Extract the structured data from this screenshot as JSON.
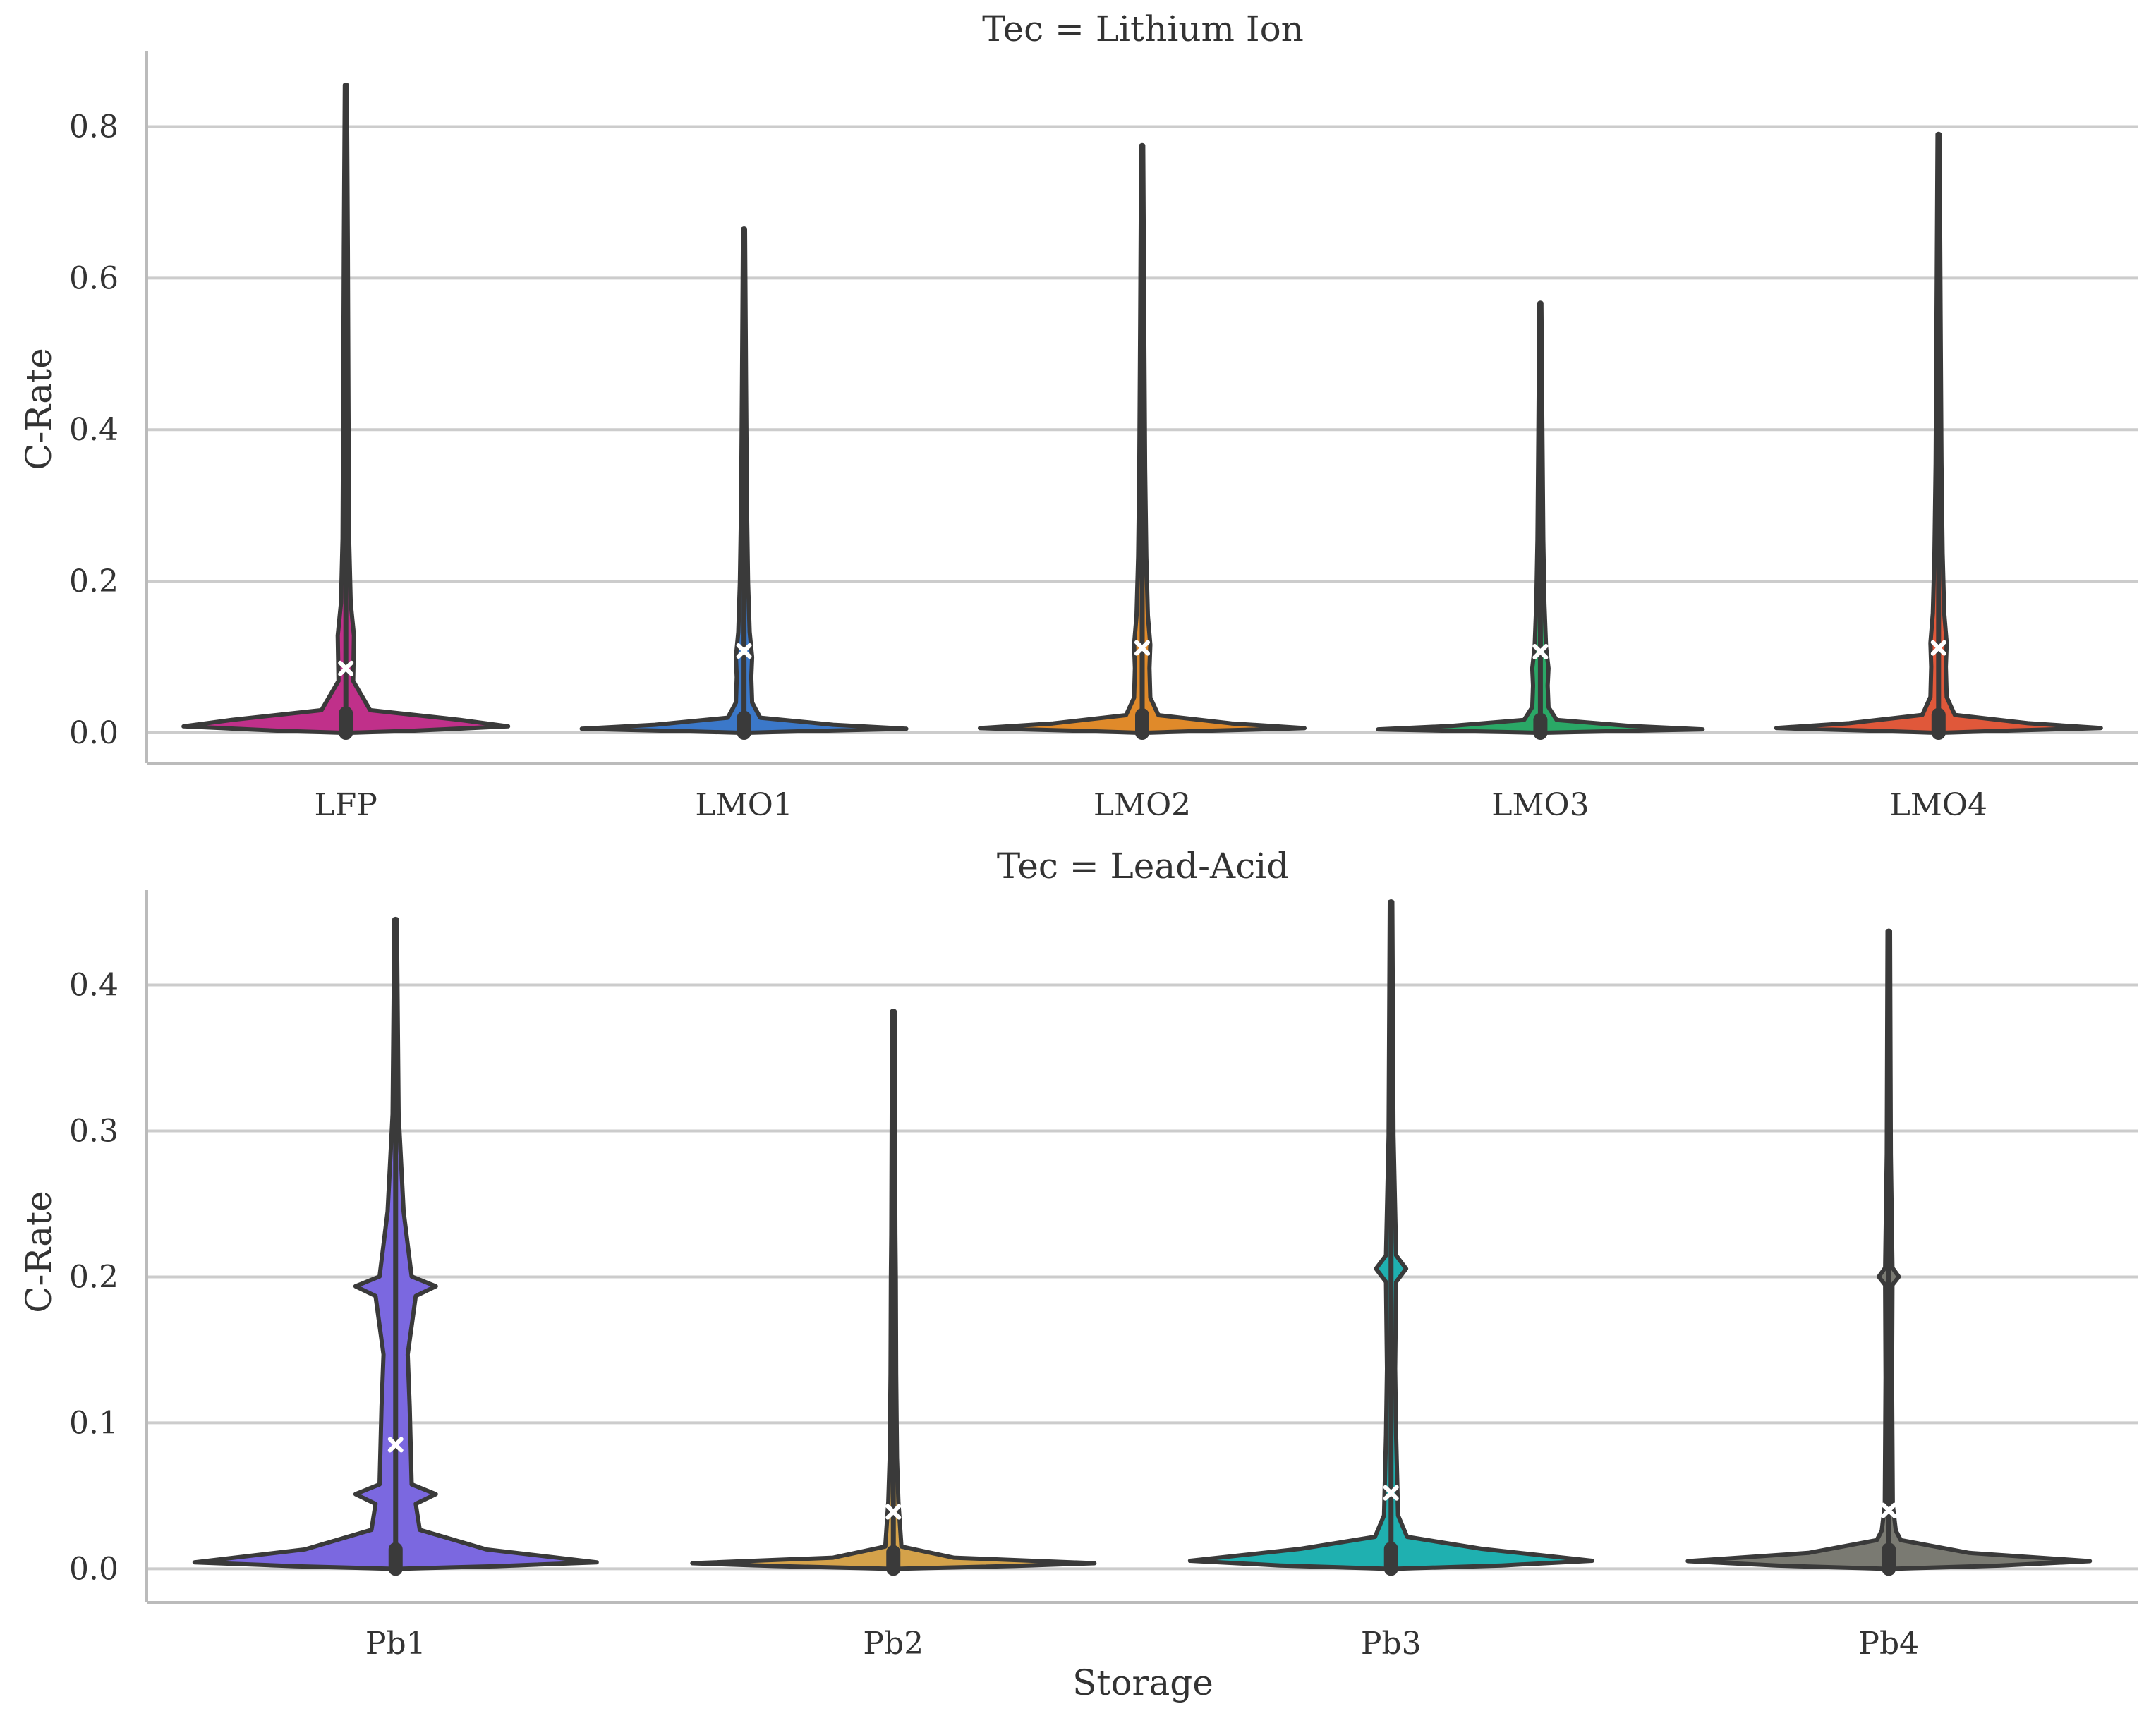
{
  "chart_data": [
    {
      "type": "violin",
      "title": "Tec = Lithium Ion",
      "xlabel": "",
      "ylabel": "C-Rate",
      "ylim": [
        -0.04,
        0.9
      ],
      "yticks": [
        "0.0",
        "0.2",
        "0.4",
        "0.6",
        "0.8"
      ],
      "grid": "horizontal",
      "categories": [
        "LFP",
        "LMO1",
        "LMO2",
        "LMO3",
        "LMO4"
      ],
      "series": [
        {
          "name": "LFP",
          "color": "#c0308a",
          "min": 0.0,
          "max": 0.855,
          "mean": 0.085
        },
        {
          "name": "LMO1",
          "color": "#3b78c9",
          "min": 0.0,
          "max": 0.665,
          "mean": 0.108
        },
        {
          "name": "LMO2",
          "color": "#e08a2a",
          "min": 0.0,
          "max": 0.775,
          "mean": 0.112
        },
        {
          "name": "LMO3",
          "color": "#2aa866",
          "min": 0.0,
          "max": 0.567,
          "mean": 0.107
        },
        {
          "name": "LMO4",
          "color": "#e0583a",
          "min": 0.0,
          "max": 0.79,
          "mean": 0.112
        }
      ]
    },
    {
      "type": "violin",
      "title": "Tec = Lead-Acid",
      "xlabel": "Storage",
      "ylabel": "C-Rate",
      "ylim": [
        -0.023,
        0.465
      ],
      "yticks": [
        "0.0",
        "0.1",
        "0.2",
        "0.3",
        "0.4"
      ],
      "grid": "horizontal",
      "categories": [
        "Pb1",
        "Pb2",
        "Pb3",
        "Pb4"
      ],
      "series": [
        {
          "name": "Pb1",
          "color": "#7b68e0",
          "min": 0.0,
          "max": 0.445,
          "mean": 0.085
        },
        {
          "name": "Pb2",
          "color": "#d4a24a",
          "min": 0.0,
          "max": 0.382,
          "mean": 0.039
        },
        {
          "name": "Pb3",
          "color": "#1fb0b0",
          "min": 0.0,
          "max": 0.457,
          "mean": 0.052
        },
        {
          "name": "Pb4",
          "color": "#7a7a72",
          "min": 0.0,
          "max": 0.437,
          "mean": 0.04
        }
      ]
    }
  ]
}
